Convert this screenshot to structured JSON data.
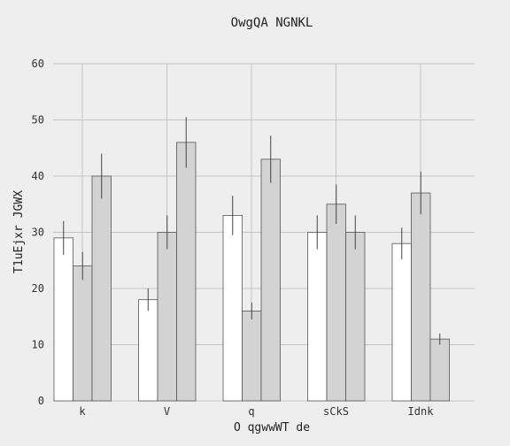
{
  "chart_data": {
    "type": "bar",
    "title": "OwgQA NGNKL",
    "xlabel": "O qgwwWT de",
    "ylabel": "T1uEjxr JGWX",
    "categories": [
      "k",
      "V",
      "q",
      "sCkS",
      "Idnk"
    ],
    "ylim": [
      0,
      60
    ],
    "yticks": [
      0,
      10,
      20,
      30,
      40,
      50,
      60
    ],
    "grid": true,
    "legend": "none",
    "series": [
      {
        "values": [
          29,
          18,
          33,
          30,
          28
        ],
        "errors": [
          3.0,
          2.0,
          3.5,
          3.0,
          2.8
        ],
        "color": "#ffffff"
      },
      {
        "values": [
          24,
          30,
          16,
          35,
          37
        ],
        "errors": [
          2.5,
          3.0,
          1.5,
          3.5,
          3.8
        ],
        "color": "#d3d3d3"
      },
      {
        "values": [
          40,
          46,
          43,
          30,
          11
        ],
        "errors": [
          4.0,
          4.5,
          4.2,
          3.0,
          1.0
        ],
        "color": "#d3d3d3"
      }
    ]
  }
}
